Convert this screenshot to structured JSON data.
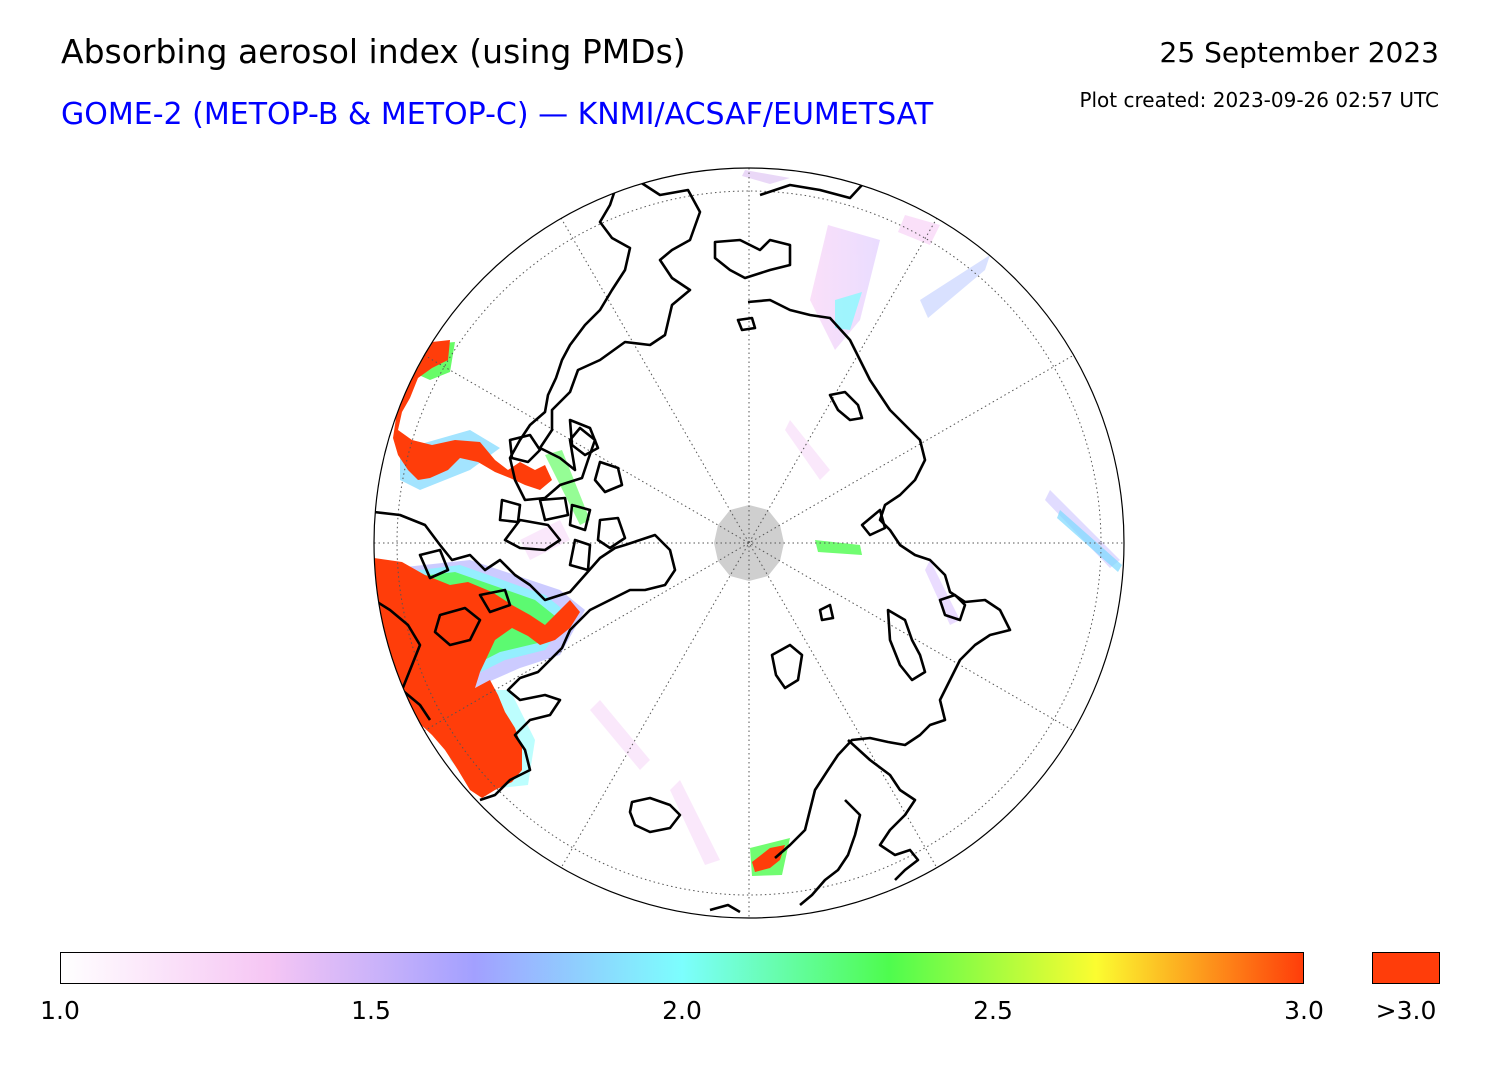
{
  "header": {
    "title": "Absorbing aerosol index (using PMDs)",
    "subtitle": "GOME-2 (METOP-B & METOP-C) — KNMI/ACSAF/EUMETSAT",
    "date": "25 September 2023",
    "created": "Plot created: 2023-09-26 02:57 UTC"
  },
  "map": {
    "projection": "north-polar-stereographic",
    "land_outline_color": "#000000",
    "graticule_color": "#555555",
    "pole_gap_color": "#cfcfcf",
    "aerosol_high_color": "#ff3d0a"
  },
  "colorbar": {
    "min": 1.0,
    "max": 3.0,
    "ticks": [
      "1.0",
      "1.5",
      "2.0",
      "2.5",
      "3.0"
    ],
    "overflow_label": ">3.0",
    "overflow_color": "#ff3d0a",
    "gradient_stops": [
      "#ffffff",
      "#f6c6f4",
      "#a2a0ff",
      "#7cfefe",
      "#4efc4e",
      "#fbfc30",
      "#ff3d0a"
    ]
  }
}
